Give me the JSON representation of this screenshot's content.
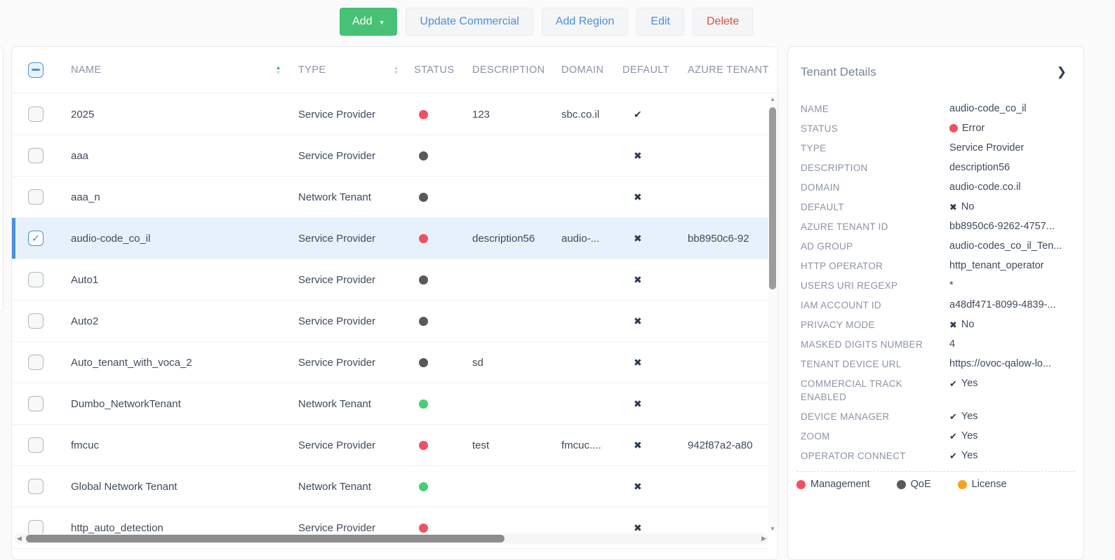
{
  "toolbar": {
    "add": "Add",
    "update_commercial": "Update Commercial",
    "add_region": "Add Region",
    "edit": "Edit",
    "delete": "Delete"
  },
  "icons": {
    "caret_down": "▼",
    "sort_up": "▲",
    "sort_down": "▼",
    "check": "✓",
    "check_bold": "✔",
    "cross_bold": "✖",
    "chevron_right": "❯",
    "arrow_up": "▲",
    "arrow_down": "▼",
    "arrow_left": "◀",
    "arrow_right": "▶"
  },
  "colors": {
    "accent_blue": "#4a90d9",
    "add_green": "#47c274",
    "delete_red": "#dc5044",
    "status_error": "#ee5162",
    "status_ok": "#42ce75",
    "status_unmonitored": "#58595b",
    "license_orange": "#f5a31d",
    "dark_mark": "#2c3a4e"
  },
  "table": {
    "columns": [
      "NAME",
      "TYPE",
      "STATUS",
      "DESCRIPTION",
      "DOMAIN",
      "DEFAULT",
      "AZURE TENANT"
    ],
    "rows": [
      {
        "name": "2025",
        "type": "Service Provider",
        "status_color": "status_error",
        "description": "123",
        "domain": "sbc.co.il",
        "default": true,
        "azure_tenant": "",
        "selected": false
      },
      {
        "name": "aaa",
        "type": "Service Provider",
        "status_color": "status_unmonitored",
        "description": "",
        "domain": "",
        "default": false,
        "azure_tenant": "",
        "selected": false
      },
      {
        "name": "aaa_n",
        "type": "Network Tenant",
        "status_color": "status_unmonitored",
        "description": "",
        "domain": "",
        "default": false,
        "azure_tenant": "",
        "selected": false
      },
      {
        "name": "audio-code_co_il",
        "type": "Service Provider",
        "status_color": "status_error",
        "description": "description56",
        "domain": "audio-...",
        "default": false,
        "azure_tenant": "bb8950c6-92",
        "selected": true
      },
      {
        "name": "Auto1",
        "type": "Service Provider",
        "status_color": "status_unmonitored",
        "description": "",
        "domain": "",
        "default": false,
        "azure_tenant": "",
        "selected": false
      },
      {
        "name": "Auto2",
        "type": "Service Provider",
        "status_color": "status_unmonitored",
        "description": "",
        "domain": "",
        "default": false,
        "azure_tenant": "",
        "selected": false
      },
      {
        "name": "Auto_tenant_with_voca_2",
        "type": "Service Provider",
        "status_color": "status_unmonitored",
        "description": "sd",
        "domain": "",
        "default": false,
        "azure_tenant": "",
        "selected": false
      },
      {
        "name": "Dumbo_NetworkTenant",
        "type": "Network Tenant",
        "status_color": "status_ok",
        "description": "",
        "domain": "",
        "default": false,
        "azure_tenant": "",
        "selected": false
      },
      {
        "name": "fmcuc",
        "type": "Service Provider",
        "status_color": "status_error",
        "description": "test",
        "domain": "fmcuc....",
        "default": false,
        "azure_tenant": "942f87a2-a80",
        "selected": false
      },
      {
        "name": "Global Network Tenant",
        "type": "Network Tenant",
        "status_color": "status_ok",
        "description": "",
        "domain": "",
        "default": false,
        "azure_tenant": "",
        "selected": false
      },
      {
        "name": "http_auto_detection",
        "type": "Service Provider",
        "status_color": "status_error",
        "description": "",
        "domain": "",
        "default": false,
        "azure_tenant": "",
        "selected": false
      }
    ]
  },
  "details": {
    "title": "Tenant Details",
    "fields": [
      {
        "label": "NAME",
        "value": "audio-code_co_il"
      },
      {
        "label": "STATUS",
        "value": "Error",
        "icon": "dot",
        "icon_color": "status_error"
      },
      {
        "label": "TYPE",
        "value": "Service Provider"
      },
      {
        "label": "DESCRIPTION",
        "value": "description56"
      },
      {
        "label": "DOMAIN",
        "value": "audio-code.co.il"
      },
      {
        "label": "DEFAULT",
        "value": "No",
        "icon": "cross"
      },
      {
        "label": "AZURE TENANT ID",
        "value": "bb8950c6-9262-4757..."
      },
      {
        "label": "AD GROUP",
        "value": "audio-codes_co_il_Ten..."
      },
      {
        "label": "HTTP OPERATOR",
        "value": "http_tenant_operator"
      },
      {
        "label": "USERS URI REGEXP",
        "value": "*"
      },
      {
        "label": "IAM ACCOUNT ID",
        "value": "a48df471-8099-4839-..."
      },
      {
        "label": "PRIVACY MODE",
        "value": "No",
        "icon": "cross"
      },
      {
        "label": "MASKED DIGITS NUMBER",
        "value": "4"
      },
      {
        "label": "TENANT DEVICE URL",
        "value": "https://ovoc-qalow-lo..."
      },
      {
        "label": "COMMERCIAL TRACK ENABLED",
        "value": "Yes",
        "icon": "check"
      },
      {
        "label": "DEVICE MANAGER",
        "value": "Yes",
        "icon": "check"
      },
      {
        "label": "ZOOM",
        "value": "Yes",
        "icon": "check"
      },
      {
        "label": "OPERATOR CONNECT",
        "value": "Yes",
        "icon": "check"
      }
    ],
    "legend": [
      {
        "label": "Management",
        "color": "status_error"
      },
      {
        "label": "QoE",
        "color": "status_unmonitored"
      },
      {
        "label": "License",
        "color": "license_orange"
      }
    ]
  }
}
